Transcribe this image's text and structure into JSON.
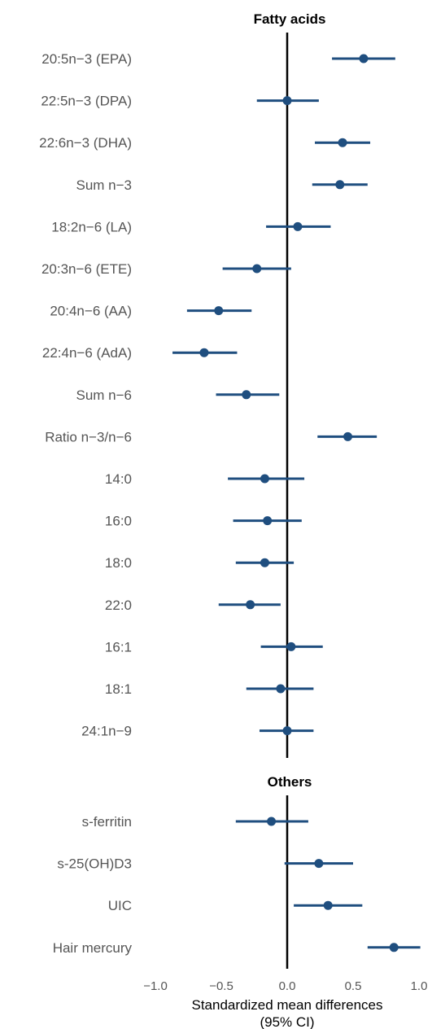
{
  "chart_data": {
    "type": "forest",
    "xlabel": "Standardized mean differences",
    "xlabel_sub": "(95% CI)",
    "xlim": [
      -1.0,
      1.0
    ],
    "xticks": [
      "−1.0",
      "−0.5",
      "0.0",
      "0.5",
      "1.0"
    ],
    "xtick_values": [
      -1.0,
      -0.5,
      0.0,
      0.5,
      1.0
    ],
    "reference_line": 0,
    "colors": {
      "point": "#1f4e7f",
      "reference": "#000000"
    },
    "panels": [
      {
        "title": "Fatty acids",
        "rows": [
          {
            "label": "20:5n−3 (EPA)",
            "est": 0.58,
            "lo": 0.34,
            "hi": 0.82
          },
          {
            "label": "22:5n−3 (DPA)",
            "est": 0.0,
            "lo": -0.23,
            "hi": 0.24
          },
          {
            "label": "22:6n−3 (DHA)",
            "est": 0.42,
            "lo": 0.21,
            "hi": 0.63
          },
          {
            "label": "Sum n−3",
            "est": 0.4,
            "lo": 0.19,
            "hi": 0.61
          },
          {
            "label": "18:2n−6 (LA)",
            "est": 0.08,
            "lo": -0.16,
            "hi": 0.33
          },
          {
            "label": "20:3n−6 (ETE)",
            "est": -0.23,
            "lo": -0.49,
            "hi": 0.03
          },
          {
            "label": "20:4n−6 (AA)",
            "est": -0.52,
            "lo": -0.76,
            "hi": -0.27
          },
          {
            "label": "22:4n−6 (AdA)",
            "est": -0.63,
            "lo": -0.87,
            "hi": -0.38
          },
          {
            "label": "Sum n−6",
            "est": -0.31,
            "lo": -0.54,
            "hi": -0.06
          },
          {
            "label": "Ratio n−3/n−6",
            "est": 0.46,
            "lo": 0.23,
            "hi": 0.68
          },
          {
            "label": "14:0",
            "est": -0.17,
            "lo": -0.45,
            "hi": 0.13
          },
          {
            "label": "16:0",
            "est": -0.15,
            "lo": -0.41,
            "hi": 0.11
          },
          {
            "label": "18:0",
            "est": -0.17,
            "lo": -0.39,
            "hi": 0.05
          },
          {
            "label": "22:0",
            "est": -0.28,
            "lo": -0.52,
            "hi": -0.05
          },
          {
            "label": "16:1",
            "est": 0.03,
            "lo": -0.2,
            "hi": 0.27
          },
          {
            "label": "18:1",
            "est": -0.05,
            "lo": -0.31,
            "hi": 0.2
          },
          {
            "label": "24:1n−9",
            "est": 0.0,
            "lo": -0.21,
            "hi": 0.2
          }
        ]
      },
      {
        "title": "Others",
        "rows": [
          {
            "label": "s-ferritin",
            "est": -0.12,
            "lo": -0.39,
            "hi": 0.16
          },
          {
            "label": "s-25(OH)D3",
            "est": 0.24,
            "lo": -0.02,
            "hi": 0.5
          },
          {
            "label": "UIC",
            "est": 0.31,
            "lo": 0.05,
            "hi": 0.57
          },
          {
            "label": "Hair mercury",
            "est": 0.81,
            "lo": 0.61,
            "hi": 1.01
          }
        ]
      }
    ]
  }
}
